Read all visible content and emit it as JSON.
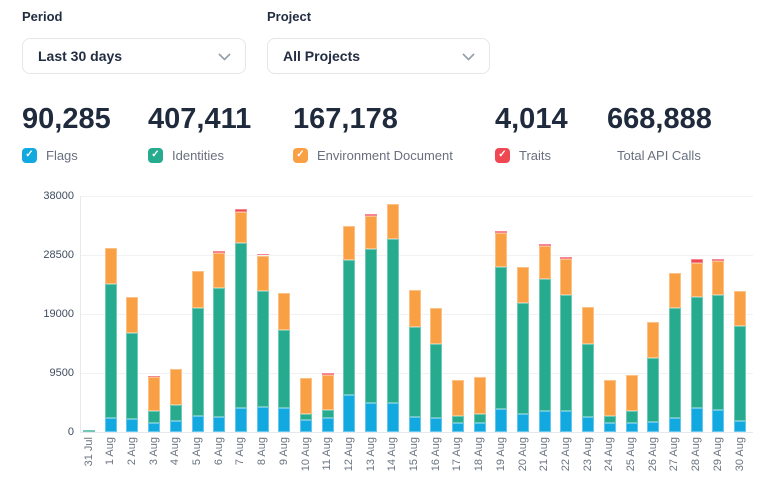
{
  "filters": {
    "period": {
      "label": "Period",
      "value": "Last 30 days"
    },
    "project": {
      "label": "Project",
      "value": "All Projects"
    }
  },
  "stats": [
    {
      "value": "90,285",
      "label": "Flags",
      "checkbox": true,
      "checked": true,
      "color": "#12a9e0"
    },
    {
      "value": "407,411",
      "label": "Identities",
      "checkbox": true,
      "checked": true,
      "color": "#27ab8f"
    },
    {
      "value": "167,178",
      "label": "Environment Document",
      "checkbox": true,
      "checked": true,
      "color": "#f9a045"
    },
    {
      "value": "4,014",
      "label": "Traits",
      "checkbox": true,
      "checked": true,
      "color": "#ef4853"
    },
    {
      "value": "668,888",
      "label": "Total API Calls",
      "checkbox": false
    }
  ],
  "chart_data": {
    "type": "bar",
    "stacked": true,
    "grid": "horizontal",
    "legend_position": "none",
    "ylim": [
      0,
      38000
    ],
    "yticks": [
      0,
      9500,
      19000,
      28500,
      38000
    ],
    "categories": [
      "31 Jul",
      "1 Aug",
      "2 Aug",
      "3 Aug",
      "4 Aug",
      "5 Aug",
      "6 Aug",
      "7 Aug",
      "8 Aug",
      "9 Aug",
      "10 Aug",
      "11 Aug",
      "12 Aug",
      "13 Aug",
      "14 Aug",
      "15 Aug",
      "16 Aug",
      "17 Aug",
      "18 Aug",
      "19 Aug",
      "20 Aug",
      "21 Aug",
      "22 Aug",
      "23 Aug",
      "24 Aug",
      "25 Aug",
      "26 Aug",
      "27 Aug",
      "28 Aug",
      "29 Aug",
      "30 Aug"
    ],
    "series": [
      {
        "name": "Flags",
        "color": "#12a9e0",
        "values": [
          0,
          2200,
          2050,
          1400,
          1820,
          2580,
          2470,
          3810,
          4080,
          3810,
          1930,
          2200,
          5960,
          4620,
          4720,
          2470,
          2310,
          1400,
          1400,
          3650,
          2840,
          3380,
          3430,
          2470,
          1400,
          1400,
          1660,
          2200,
          3810,
          3540,
          1820
        ]
      },
      {
        "name": "Identities",
        "color": "#27ab8f",
        "values": [
          300,
          21600,
          13850,
          1990,
          2530,
          17330,
          20770,
          26570,
          18680,
          12610,
          970,
          1340,
          21730,
          24790,
          26300,
          14490,
          11810,
          1180,
          1440,
          22860,
          17980,
          21200,
          18630,
          11700,
          1180,
          2030,
          10200,
          17820,
          17980,
          18520,
          15250
        ]
      },
      {
        "name": "Environment Document",
        "color": "#f9a045",
        "values": [
          0,
          5900,
          5900,
          5420,
          5740,
          6010,
          5630,
          5040,
          5660,
          5910,
          5850,
          5640,
          5480,
          5390,
          5690,
          5900,
          5790,
          5790,
          5960,
          5470,
          5800,
          5360,
          5800,
          6010,
          5790,
          5750,
          5900,
          5530,
          5470,
          5470,
          5630
        ]
      },
      {
        "name": "Traits",
        "color": "#ef4853",
        "values": [
          0,
          0,
          0,
          200,
          0,
          0,
          200,
          430,
          270,
          0,
          0,
          300,
          0,
          300,
          0,
          0,
          0,
          0,
          0,
          430,
          0,
          270,
          370,
          0,
          0,
          0,
          0,
          0,
          540,
          320,
          0
        ]
      }
    ]
  }
}
